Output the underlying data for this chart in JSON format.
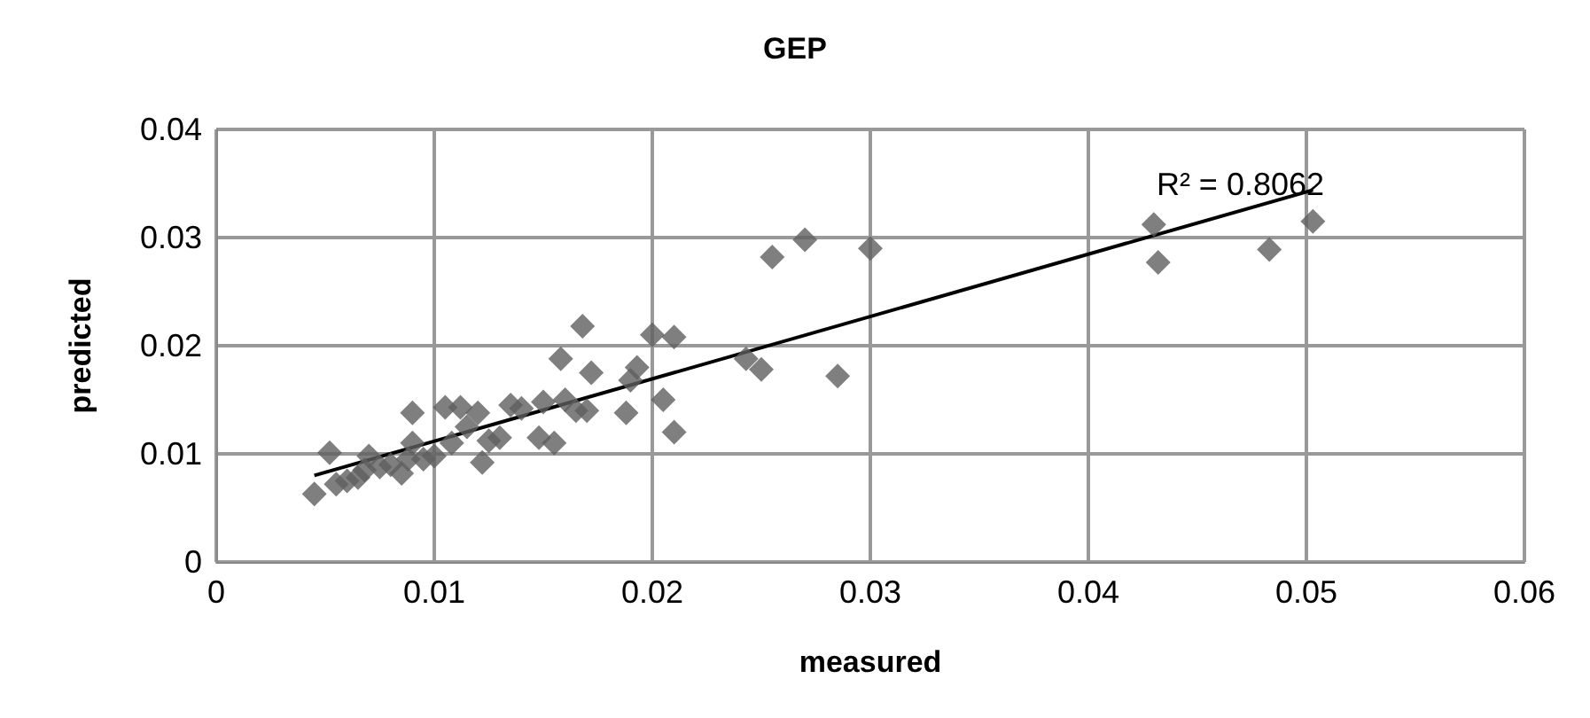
{
  "chart_data": {
    "type": "scatter",
    "title": "GEP",
    "xlabel": "measured",
    "ylabel": "predicted",
    "xlim": [
      0,
      0.06
    ],
    "xticks": [
      0,
      0.01,
      0.02,
      0.03,
      0.04,
      0.05,
      0.06
    ],
    "ylim": [
      0,
      0.04
    ],
    "yticks": [
      0,
      0.01,
      0.02,
      0.03,
      0.04
    ],
    "grid": true,
    "marker": "diamond",
    "annotations": [
      "R² = 0.8062"
    ],
    "series": [
      {
        "color": "#5f5f5f",
        "x": [
          0.0045,
          0.0052,
          0.0055,
          0.006,
          0.0065,
          0.0068,
          0.007,
          0.0075,
          0.008,
          0.0085,
          0.0088,
          0.009,
          0.009,
          0.0095,
          0.01,
          0.0105,
          0.0108,
          0.0112,
          0.0115,
          0.012,
          0.0122,
          0.0125,
          0.013,
          0.0135,
          0.014,
          0.0148,
          0.015,
          0.0155,
          0.0158,
          0.016,
          0.0165,
          0.0168,
          0.017,
          0.0172,
          0.0188,
          0.019,
          0.0193,
          0.02,
          0.0205,
          0.021,
          0.021,
          0.0243,
          0.025,
          0.0255,
          0.027,
          0.0285,
          0.03,
          0.043,
          0.0432,
          0.0483,
          0.0503
        ],
        "values": [
          0.0063,
          0.0101,
          0.0072,
          0.0075,
          0.0078,
          0.0085,
          0.0098,
          0.0088,
          0.009,
          0.0082,
          0.0095,
          0.0138,
          0.011,
          0.0095,
          0.0098,
          0.0143,
          0.011,
          0.0143,
          0.0125,
          0.0138,
          0.0092,
          0.0112,
          0.0115,
          0.0145,
          0.0142,
          0.0115,
          0.0148,
          0.011,
          0.0188,
          0.015,
          0.014,
          0.0218,
          0.014,
          0.0175,
          0.0138,
          0.0168,
          0.018,
          0.021,
          0.015,
          0.0208,
          0.012,
          0.0188,
          0.0178,
          0.0282,
          0.0298,
          0.0172,
          0.029,
          0.0312,
          0.0277,
          0.0289,
          0.0315
        ]
      },
      {
        "type": "line",
        "color": "#000000",
        "marker": "none",
        "x": [
          0.0045,
          0.0503
        ],
        "values": [
          0.008,
          0.0344
        ]
      }
    ]
  }
}
